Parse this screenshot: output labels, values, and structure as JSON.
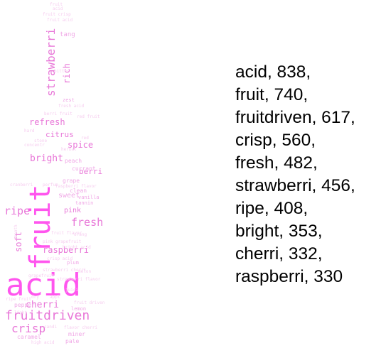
{
  "colors": {
    "background": "#ffffff",
    "cloud_bright": "#ff55ee",
    "cloud_mid": "#e877d8",
    "cloud_light": "#f0a8e6",
    "cloud_pale": "#f6cdef",
    "list_text": "#000000"
  },
  "cloud": {
    "shape": "wine-bottle",
    "words": [
      {
        "text": "acid",
        "weight": 1.0,
        "rotate": 0
      },
      {
        "text": "fruit",
        "weight": 0.88,
        "rotate": -90
      },
      {
        "text": "fruitdriven",
        "weight": 0.55,
        "rotate": 0
      },
      {
        "text": "crisp",
        "weight": 0.5,
        "rotate": 0
      },
      {
        "text": "fresh",
        "weight": 0.45,
        "rotate": 0
      },
      {
        "text": "strawberri",
        "weight": 0.45,
        "rotate": -90
      },
      {
        "text": "ripe",
        "weight": 0.42,
        "rotate": 0
      },
      {
        "text": "bright",
        "weight": 0.38,
        "rotate": 0
      },
      {
        "text": "cherri",
        "weight": 0.37,
        "rotate": 0
      },
      {
        "text": "raspberri",
        "weight": 0.37,
        "rotate": 0
      },
      {
        "text": "refresh",
        "weight": 0.34,
        "rotate": 0
      },
      {
        "text": "spice",
        "weight": 0.34,
        "rotate": 0
      },
      {
        "text": "citrus",
        "weight": 0.32,
        "rotate": 0
      },
      {
        "text": "soft",
        "weight": 0.32,
        "rotate": -90
      },
      {
        "text": "berri",
        "weight": 0.3,
        "rotate": 0
      },
      {
        "text": "rich",
        "weight": 0.3,
        "rotate": -90
      },
      {
        "text": "pink",
        "weight": 0.26,
        "rotate": 0
      },
      {
        "text": "sweet",
        "weight": 0.25,
        "rotate": 0
      },
      {
        "text": "tang",
        "weight": 0.24,
        "rotate": 0
      },
      {
        "text": "peach",
        "weight": 0.22,
        "rotate": 0
      },
      {
        "text": "currant",
        "weight": 0.2,
        "rotate": 0
      },
      {
        "text": "grape",
        "weight": 0.2,
        "rotate": 0
      },
      {
        "text": "clean",
        "weight": 0.2,
        "rotate": 0
      },
      {
        "text": "pepper",
        "weight": 0.2,
        "rotate": 0
      },
      {
        "text": "caramel",
        "weight": 0.2,
        "rotate": 0
      },
      {
        "text": "pale",
        "weight": 0.2,
        "rotate": 0
      },
      {
        "text": "miner",
        "weight": 0.2,
        "rotate": 0
      },
      {
        "text": "lemon",
        "weight": 0.18,
        "rotate": 0
      },
      {
        "text": "plum",
        "weight": 0.18,
        "rotate": 0
      },
      {
        "text": "zest",
        "weight": 0.18,
        "rotate": 0
      },
      {
        "text": "tannin",
        "weight": 0.18,
        "rotate": 0
      },
      {
        "text": "vanilla",
        "weight": 0.18,
        "rotate": 0
      },
      {
        "text": "bitter",
        "weight": 0.15,
        "rotate": 0
      },
      {
        "text": "fruit crisp",
        "weight": 0.15,
        "rotate": 0
      },
      {
        "text": "fruit acid",
        "weight": 0.15,
        "rotate": 0
      },
      {
        "text": "fruit flavor",
        "weight": 0.15,
        "rotate": 0
      },
      {
        "text": "high acid",
        "weight": 0.15,
        "rotate": 0
      },
      {
        "text": "fresh acid",
        "weight": 0.12,
        "rotate": 0
      },
      {
        "text": "berri fruit",
        "weight": 0.12,
        "rotate": 0
      },
      {
        "text": "raspberri flavor",
        "weight": 0.12,
        "rotate": 0
      },
      {
        "text": "strawberri flavor",
        "weight": 0.12,
        "rotate": 0
      },
      {
        "text": "grapefruit",
        "weight": 0.12,
        "rotate": 0
      },
      {
        "text": "perfum",
        "weight": 0.12,
        "rotate": 0
      },
      {
        "text": "smooth",
        "weight": 0.12,
        "rotate": -90
      },
      {
        "text": "candi",
        "weight": 0.12,
        "rotate": 0
      },
      {
        "text": "flavor cherri",
        "weight": 0.12,
        "rotate": 0
      },
      {
        "text": "concentr",
        "weight": 0.12,
        "rotate": 0
      },
      {
        "text": "herbal",
        "weight": 0.12,
        "rotate": 0
      },
      {
        "text": "stone",
        "weight": 0.12,
        "rotate": 0
      },
      {
        "text": "ripe fruit",
        "weight": 0.12,
        "rotate": 0
      },
      {
        "text": "fruit",
        "weight": 0.12,
        "rotate": 0
      },
      {
        "text": "acid",
        "weight": 0.12,
        "rotate": 0
      },
      {
        "text": "crisp acid",
        "weight": 0.12,
        "rotate": 0
      },
      {
        "text": "strawberri cherri",
        "weight": 0.12,
        "rotate": 0
      },
      {
        "text": "bright acid",
        "weight": 0.12,
        "rotate": 0
      },
      {
        "text": "juici",
        "weight": 0.12,
        "rotate": 0
      },
      {
        "text": "light",
        "weight": 0.12,
        "rotate": 0
      },
      {
        "text": "appl",
        "weight": 0.12,
        "rotate": 0
      },
      {
        "text": "dry",
        "weight": 0.12,
        "rotate": 0
      },
      {
        "text": "hard",
        "weight": 0.12,
        "rotate": 0
      },
      {
        "text": "cranberri",
        "weight": 0.12,
        "rotate": 0
      },
      {
        "text": "orang",
        "weight": 0.12,
        "rotate": 0
      },
      {
        "text": "melon",
        "weight": 0.12,
        "rotate": 0
      },
      {
        "text": "red",
        "weight": 0.12,
        "rotate": 0
      },
      {
        "text": "red fruit",
        "weight": 0.12,
        "rotate": 0
      },
      {
        "text": "fruit driven",
        "weight": 0.12,
        "rotate": 0
      },
      {
        "text": "pink grapefruit",
        "weight": 0.12,
        "rotate": 0
      }
    ]
  },
  "frequency_list": [
    {
      "word": "acid",
      "count": "838",
      "text": "acid, 838,"
    },
    {
      "word": "fruit",
      "count": "740",
      "text": "fruit, 740,"
    },
    {
      "word": "fruitdriven",
      "count": "617",
      "text": "fruitdriven, 617,"
    },
    {
      "word": "crisp",
      "count": "560",
      "text": "crisp, 560,"
    },
    {
      "word": "fresh",
      "count": "482",
      "text": "fresh, 482,"
    },
    {
      "word": "strawberri",
      "count": "456",
      "text": "strawberri, 456,"
    },
    {
      "word": "ripe",
      "count": "408",
      "text": "ripe, 408,"
    },
    {
      "word": "bright",
      "count": "353",
      "text": "bright, 353,"
    },
    {
      "word": "cherri",
      "count": "332",
      "text": "cherri, 332,"
    },
    {
      "word": "raspberri",
      "count": "330",
      "text": "raspberri, 330"
    }
  ]
}
